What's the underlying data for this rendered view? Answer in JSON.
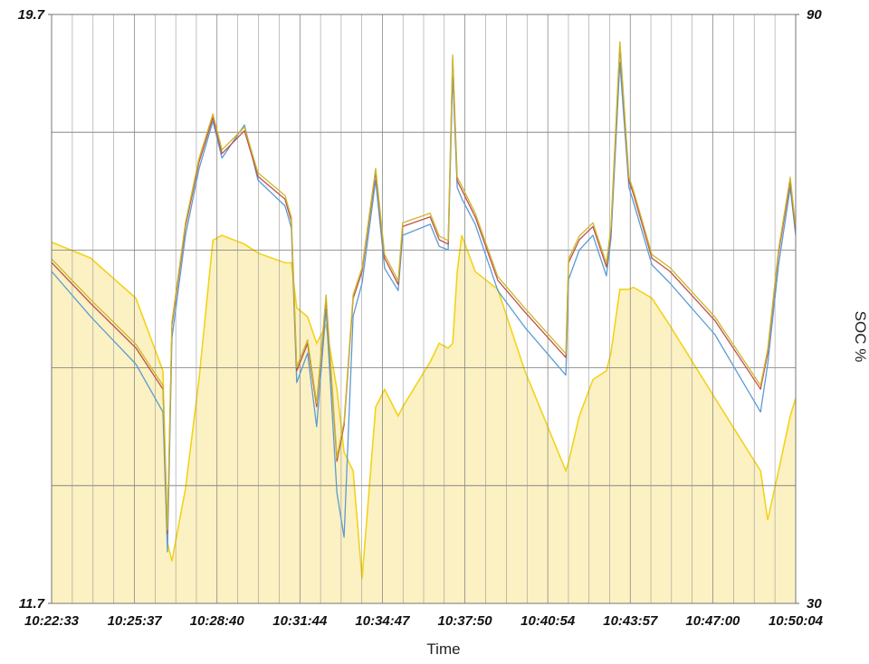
{
  "chart_data": {
    "type": "line",
    "x_label": "Time",
    "y2_label": "SOC %",
    "x": [
      "10:22:33",
      "10:23:59",
      "10:25:40",
      "10:26:40",
      "10:26:50",
      "10:27:00",
      "10:27:30",
      "10:28:00",
      "10:28:31",
      "10:28:51",
      "10:29:41",
      "10:30:11",
      "10:31:11",
      "10:31:25",
      "10:31:37",
      "10:32:01",
      "10:32:21",
      "10:32:42",
      "10:33:06",
      "10:33:22",
      "10:33:42",
      "10:34:02",
      "10:34:32",
      "10:34:52",
      "10:35:22",
      "10:35:32",
      "10:36:33",
      "10:36:53",
      "10:37:13",
      "10:37:23",
      "10:37:33",
      "10:37:43",
      "10:38:13",
      "10:39:03",
      "10:40:03",
      "10:41:34",
      "10:41:40",
      "10:42:04",
      "10:42:34",
      "10:43:04",
      "10:43:14",
      "10:43:34",
      "10:43:54",
      "10:44:04",
      "10:44:45",
      "10:45:25",
      "10:47:05",
      "10:48:46",
      "10:49:02",
      "10:49:26",
      "10:49:52",
      "10:50:04"
    ],
    "xlim": [
      "10:22:33",
      "10:50:04"
    ],
    "xticks": [
      "10:22:33",
      "10:25:37",
      "10:28:40",
      "10:31:44",
      "10:34:47",
      "10:37:50",
      "10:40:54",
      "10:43:57",
      "10:47:00",
      "10:50:04"
    ],
    "ylim": [
      11.7,
      19.7
    ],
    "yticks": [
      11.7,
      19.7
    ],
    "y2lim": [
      30,
      90
    ],
    "y2ticks": [
      30,
      90
    ],
    "grid": true,
    "series": [
      {
        "axis": "y2",
        "color": "#f2d31b",
        "fill": "#fcf1c2",
        "values": [
          66.8,
          65.2,
          61.1,
          53.7,
          36.2,
          34.3,
          41.7,
          52.8,
          67.0,
          67.5,
          66.6,
          65.7,
          64.7,
          64.7,
          60.1,
          59.2,
          56.5,
          58.3,
          51.8,
          45.4,
          43.5,
          32.5,
          50.0,
          51.8,
          49.1,
          50.0,
          54.6,
          56.5,
          56.0,
          56.5,
          63.8,
          67.5,
          63.8,
          62.0,
          53.7,
          43.5,
          44.4,
          49.1,
          52.8,
          53.7,
          55.5,
          62.0,
          62.0,
          62.2,
          61.1,
          58.3,
          50.9,
          43.5,
          38.5,
          43.5,
          49.1,
          50.9
        ]
      },
      {
        "color": "#5b9bd5",
        "values": [
          16.21,
          15.6,
          14.95,
          14.3,
          12.4,
          15.3,
          16.7,
          17.6,
          18.25,
          17.75,
          18.2,
          17.45,
          17.1,
          16.8,
          14.7,
          15.1,
          14.1,
          15.7,
          13.2,
          12.6,
          15.6,
          16.05,
          17.45,
          16.25,
          15.95,
          16.7,
          16.85,
          16.55,
          16.5,
          18.9,
          17.35,
          17.2,
          16.85,
          15.95,
          15.45,
          14.8,
          16.1,
          16.5,
          16.7,
          16.15,
          16.65,
          19.05,
          17.35,
          17.15,
          16.3,
          16.05,
          15.35,
          14.3,
          14.95,
          16.3,
          17.35,
          16.7
        ]
      },
      {
        "color": "#c0504d",
        "values": [
          16.33,
          15.78,
          15.17,
          14.61,
          12.65,
          15.47,
          16.82,
          17.69,
          18.3,
          17.81,
          18.12,
          17.5,
          17.19,
          16.89,
          14.86,
          15.23,
          14.37,
          15.84,
          13.63,
          14.12,
          15.84,
          16.21,
          17.56,
          16.39,
          16.03,
          16.82,
          16.95,
          16.64,
          16.58,
          19.1,
          17.44,
          17.32,
          16.95,
          16.09,
          15.66,
          15.04,
          16.33,
          16.64,
          16.82,
          16.27,
          16.76,
          19.28,
          17.44,
          17.26,
          16.39,
          16.21,
          15.54,
          14.61,
          15.1,
          16.46,
          17.44,
          16.76
        ]
      },
      {
        "color": "#c9b92a",
        "values": [
          16.38,
          15.83,
          15.22,
          14.66,
          12.7,
          15.52,
          16.87,
          17.74,
          18.35,
          17.86,
          18.17,
          17.55,
          17.24,
          16.94,
          14.91,
          15.28,
          14.42,
          15.89,
          13.68,
          14.17,
          15.89,
          16.26,
          17.61,
          16.44,
          16.08,
          16.87,
          17.0,
          16.69,
          16.63,
          19.15,
          17.49,
          17.37,
          17.0,
          16.14,
          15.71,
          15.09,
          16.38,
          16.69,
          16.87,
          16.32,
          16.81,
          19.33,
          17.49,
          17.31,
          16.44,
          16.26,
          15.59,
          14.66,
          15.15,
          16.51,
          17.49,
          16.81
        ]
      }
    ]
  }
}
